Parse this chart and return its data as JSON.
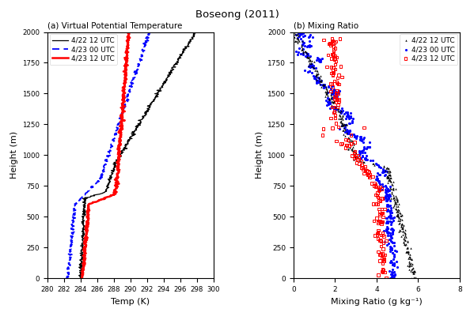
{
  "title": "Boseong (2011)",
  "panel_a_title": "(a) Virtual Potential Temperature",
  "panel_b_title": "(b) Mixing Ratio",
  "xlabel_a": "Temp (K)",
  "xlabel_b": "Mixing Ratio (g kg⁻¹)",
  "ylabel": "Height (m)",
  "xlim_a": [
    280,
    300
  ],
  "xlim_b": [
    0,
    8
  ],
  "ylim": [
    0,
    2000
  ],
  "xticks_a": [
    280,
    282,
    284,
    286,
    288,
    290,
    292,
    294,
    296,
    298,
    300
  ],
  "xticks_b": [
    0,
    2,
    4,
    6,
    8
  ],
  "yticks": [
    0,
    250,
    500,
    750,
    1000,
    1250,
    1500,
    1750,
    2000
  ],
  "legend_a": [
    "4/22 12 UTC",
    "4/23 00 UTC",
    "4/23 12 UTC"
  ],
  "legend_b": [
    "4/22 12 UTC",
    "4/23 00 UTC",
    "4/23 12 UTC"
  ],
  "colors_a": [
    "black",
    "blue",
    "red"
  ],
  "colors_b": [
    "black",
    "blue",
    "red"
  ]
}
